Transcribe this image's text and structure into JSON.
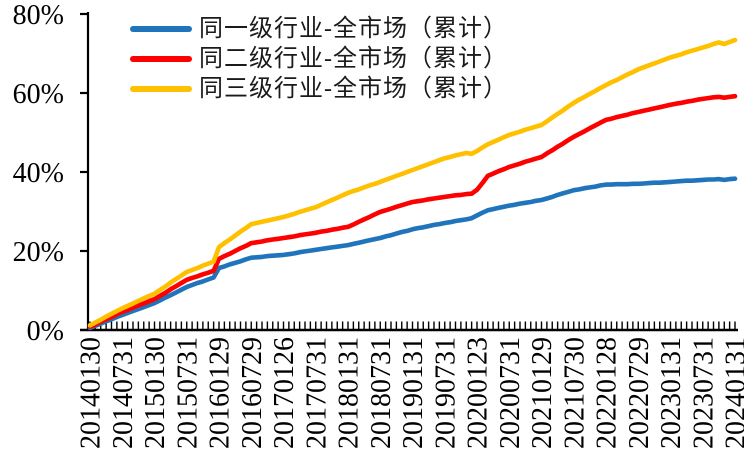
{
  "chart_data": {
    "type": "line",
    "title": "",
    "grid": false,
    "legend_position": "top-inside",
    "ylim": [
      0,
      80
    ],
    "y_ticks": [
      {
        "value": 0,
        "label": "0%"
      },
      {
        "value": 20,
        "label": "20%"
      },
      {
        "value": 40,
        "label": "40%"
      },
      {
        "value": 60,
        "label": "60%"
      },
      {
        "value": 80,
        "label": "80%"
      }
    ],
    "x_tick_labels": [
      "20140130",
      "20140731",
      "20150130",
      "20150731",
      "20160129",
      "20160729",
      "20170126",
      "20170731",
      "20180131",
      "20180731",
      "20190131",
      "20190731",
      "20200123",
      "20200731",
      "20210129",
      "20210730",
      "20220128",
      "20220729",
      "20230131",
      "20230731",
      "20240131"
    ],
    "points_per_label": 6,
    "axis_color": "#000000",
    "text_color": "#000000",
    "background_color": "#FFFFFF",
    "series": [
      {
        "name": "同一级行业-全市场（累计）",
        "color": "#1F74BC",
        "values": [
          0.5,
          1.1,
          1.6,
          2.2,
          2.7,
          3.3,
          3.8,
          4.3,
          4.8,
          5.3,
          5.8,
          6.3,
          6.8,
          7.5,
          8.2,
          8.8,
          9.5,
          10.2,
          10.9,
          11.4,
          11.9,
          12.3,
          12.8,
          13.3,
          15.7,
          16.1,
          16.6,
          17.0,
          17.4,
          17.9,
          18.3,
          18.4,
          18.5,
          18.7,
          18.8,
          18.9,
          19.0,
          19.2,
          19.4,
          19.7,
          19.9,
          20.1,
          20.3,
          20.5,
          20.7,
          20.9,
          21.1,
          21.3,
          21.5,
          21.8,
          22.1,
          22.4,
          22.7,
          23.0,
          23.3,
          23.7,
          24.0,
          24.4,
          24.8,
          25.1,
          25.5,
          25.8,
          26.0,
          26.3,
          26.6,
          26.8,
          27.1,
          27.3,
          27.6,
          27.8,
          28.0,
          28.3,
          29.0,
          29.7,
          30.3,
          30.6,
          30.9,
          31.2,
          31.5,
          31.7,
          32.0,
          32.2,
          32.4,
          32.7,
          32.9,
          33.3,
          33.7,
          34.2,
          34.6,
          35.0,
          35.4,
          35.6,
          35.9,
          36.1,
          36.3,
          36.6,
          36.8,
          36.8,
          36.9,
          36.9,
          36.9,
          37.0,
          37.0,
          37.1,
          37.2,
          37.3,
          37.3,
          37.4,
          37.5,
          37.6,
          37.7,
          37.8,
          37.8,
          37.9,
          38.0,
          38.1,
          38.1,
          38.2,
          38.0,
          38.2,
          38.3
        ]
      },
      {
        "name": "同二级行业-全市场（累计）",
        "color": "#FE0000",
        "values": [
          0.8,
          1.4,
          2.1,
          2.7,
          3.3,
          4.0,
          4.6,
          5.1,
          5.7,
          6.2,
          6.7,
          7.3,
          7.8,
          8.6,
          9.4,
          10.3,
          11.1,
          11.9,
          12.7,
          13.2,
          13.6,
          14.1,
          14.5,
          15.0,
          18.0,
          18.7,
          19.3,
          20.0,
          20.7,
          21.3,
          22.0,
          22.2,
          22.4,
          22.7,
          22.9,
          23.1,
          23.3,
          23.5,
          23.7,
          24.0,
          24.2,
          24.4,
          24.6,
          24.9,
          25.1,
          25.4,
          25.6,
          25.9,
          26.1,
          26.7,
          27.4,
          28.0,
          28.6,
          29.3,
          29.9,
          30.3,
          30.7,
          31.2,
          31.6,
          32.0,
          32.4,
          32.6,
          32.8,
          33.1,
          33.3,
          33.5,
          33.7,
          33.9,
          34.1,
          34.2,
          34.4,
          34.5,
          35.5,
          37.2,
          39.0,
          39.6,
          40.2,
          40.7,
          41.3,
          41.7,
          42.1,
          42.6,
          43.0,
          43.4,
          43.8,
          44.7,
          45.5,
          46.4,
          47.2,
          48.1,
          48.9,
          49.6,
          50.3,
          51.1,
          51.8,
          52.5,
          53.2,
          53.5,
          53.9,
          54.2,
          54.5,
          54.9,
          55.2,
          55.5,
          55.8,
          56.1,
          56.4,
          56.7,
          57.0,
          57.3,
          57.5,
          57.8,
          58.0,
          58.3,
          58.5,
          58.7,
          58.9,
          59.0,
          58.8,
          59.0,
          59.2
        ]
      },
      {
        "name": "同三级行业-全市场（累计）",
        "color": "#FFC000",
        "values": [
          1.2,
          1.9,
          2.6,
          3.4,
          4.1,
          4.8,
          5.5,
          6.1,
          6.7,
          7.4,
          8.0,
          8.6,
          9.2,
          10.1,
          11.0,
          12.0,
          12.9,
          13.8,
          14.7,
          15.2,
          15.7,
          16.3,
          16.8,
          17.3,
          21.0,
          22.0,
          22.9,
          23.9,
          24.9,
          25.8,
          26.8,
          27.1,
          27.4,
          27.7,
          28.0,
          28.3,
          28.6,
          29.0,
          29.4,
          29.9,
          30.3,
          30.7,
          31.1,
          31.7,
          32.3,
          32.9,
          33.5,
          34.1,
          34.7,
          35.2,
          35.6,
          36.1,
          36.6,
          37.0,
          37.5,
          38.0,
          38.5,
          39.0,
          39.5,
          40.0,
          40.5,
          41.0,
          41.5,
          42.0,
          42.5,
          43.0,
          43.5,
          43.8,
          44.2,
          44.5,
          44.8,
          44.6,
          45.3,
          46.2,
          47.0,
          47.6,
          48.2,
          48.8,
          49.4,
          49.8,
          50.2,
          50.7,
          51.1,
          51.5,
          51.9,
          52.8,
          53.8,
          54.7,
          55.6,
          56.6,
          57.5,
          58.3,
          59.0,
          59.8,
          60.5,
          61.3,
          62.0,
          62.7,
          63.3,
          64.0,
          64.7,
          65.3,
          66.0,
          66.5,
          67.0,
          67.5,
          68.0,
          68.5,
          69.0,
          69.4,
          69.8,
          70.3,
          70.7,
          71.1,
          71.5,
          71.9,
          72.4,
          72.8,
          72.4,
          72.9,
          73.4
        ]
      }
    ]
  }
}
